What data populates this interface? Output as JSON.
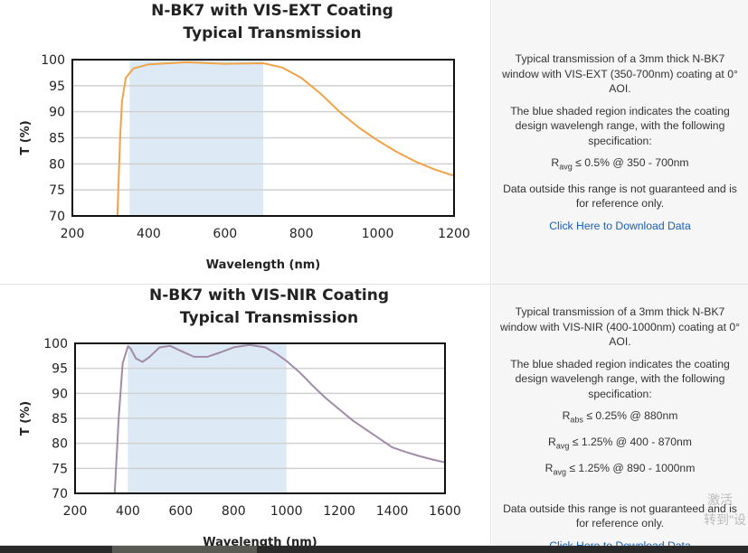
{
  "panels": [
    {
      "description": "Typical transmission of a 3mm thick N-BK7 window with VIS-EXT (350-700nm) coating at 0° AOI.",
      "shaded_note": "The blue shaded region indicates the coating design wavelengh range, with the following specification:",
      "specs": [
        {
          "symbol": "R",
          "sub": "avg",
          "text": "≤ 0.5% @ 350 - 700nm"
        }
      ],
      "disclaimer": "Data outside this range is not guaranteed and is for reference only.",
      "download_link": "Click Here to Download Data"
    },
    {
      "description": "Typical transmission of a 3mm thick N-BK7 window with VIS-NIR (400-1000nm) coating at 0° AOI.",
      "shaded_note": "The blue shaded region indicates the coating design wavelengh range, with the following specification:",
      "specs": [
        {
          "symbol": "R",
          "sub": "abs",
          "text": "≤ 0.25% @ 880nm"
        },
        {
          "symbol": "R",
          "sub": "avg",
          "text": "≤ 1.25% @ 400 - 870nm"
        },
        {
          "symbol": "R",
          "sub": "avg",
          "text": "≤ 1.25% @ 890 - 1000nm"
        }
      ],
      "disclaimer": "Data outside this range is not guaranteed and is for reference only.",
      "download_link": "Click Here to Download Data"
    }
  ],
  "watermark": {
    "line1": "激活",
    "line2": "转到\"设"
  },
  "chart_data": [
    {
      "type": "line",
      "title": [
        "N-BK7 with VIS-EXT Coating",
        "Typical Transmission"
      ],
      "xlabel": "Wavelength (nm)",
      "ylabel": "T (%)",
      "xlim": [
        200,
        1200
      ],
      "ylim": [
        70,
        100
      ],
      "xticks": [
        "200",
        "400",
        "600",
        "800",
        "1000",
        "1200"
      ],
      "yticks": [
        "70",
        "75",
        "80",
        "85",
        "90",
        "95",
        "100"
      ],
      "grid": "horizontal",
      "shaded_range": [
        350,
        700
      ],
      "colors": {
        "line": "#f0a347",
        "shade": "#dde9f5"
      },
      "x": [
        318,
        325,
        330,
        340,
        360,
        400,
        500,
        600,
        700,
        750,
        800,
        850,
        900,
        950,
        1000,
        1050,
        1100,
        1150,
        1200
      ],
      "y": [
        70,
        85,
        92,
        96.5,
        98.3,
        99.1,
        99.5,
        99.2,
        99.3,
        98.5,
        96.5,
        93.5,
        90,
        87,
        84.5,
        82.3,
        80.4,
        78.9,
        77.7
      ]
    },
    {
      "type": "line",
      "title": [
        "N-BK7 with VIS-NIR Coating",
        "Typical Transmission"
      ],
      "xlabel": "Wavelength (nm)",
      "ylabel": "T (%)",
      "xlim": [
        200,
        1600
      ],
      "ylim": [
        70,
        100
      ],
      "xticks": [
        "200",
        "400",
        "600",
        "800",
        "1000",
        "1200",
        "1400",
        "1600"
      ],
      "yticks": [
        "70",
        "75",
        "80",
        "85",
        "90",
        "95",
        "100"
      ],
      "grid": "horizontal",
      "shaded_range": [
        400,
        1000
      ],
      "colors": {
        "line": "#a08ca8",
        "shade": "#dde9f5"
      },
      "x": [
        350,
        365,
        380,
        400,
        410,
        430,
        455,
        480,
        520,
        560,
        600,
        650,
        700,
        750,
        800,
        860,
        920,
        960,
        1000,
        1050,
        1100,
        1150,
        1200,
        1250,
        1300,
        1350,
        1400,
        1450,
        1500,
        1550,
        1600
      ],
      "y": [
        70,
        85,
        96,
        99.4,
        99,
        97,
        96.3,
        97.2,
        99.2,
        99.5,
        98.5,
        97.3,
        97.3,
        98.2,
        99.2,
        99.7,
        99.2,
        98,
        96.5,
        94.2,
        91.5,
        89,
        86.8,
        84.6,
        82.8,
        81,
        79.2,
        78.3,
        77.5,
        76.8,
        76.2
      ]
    }
  ]
}
